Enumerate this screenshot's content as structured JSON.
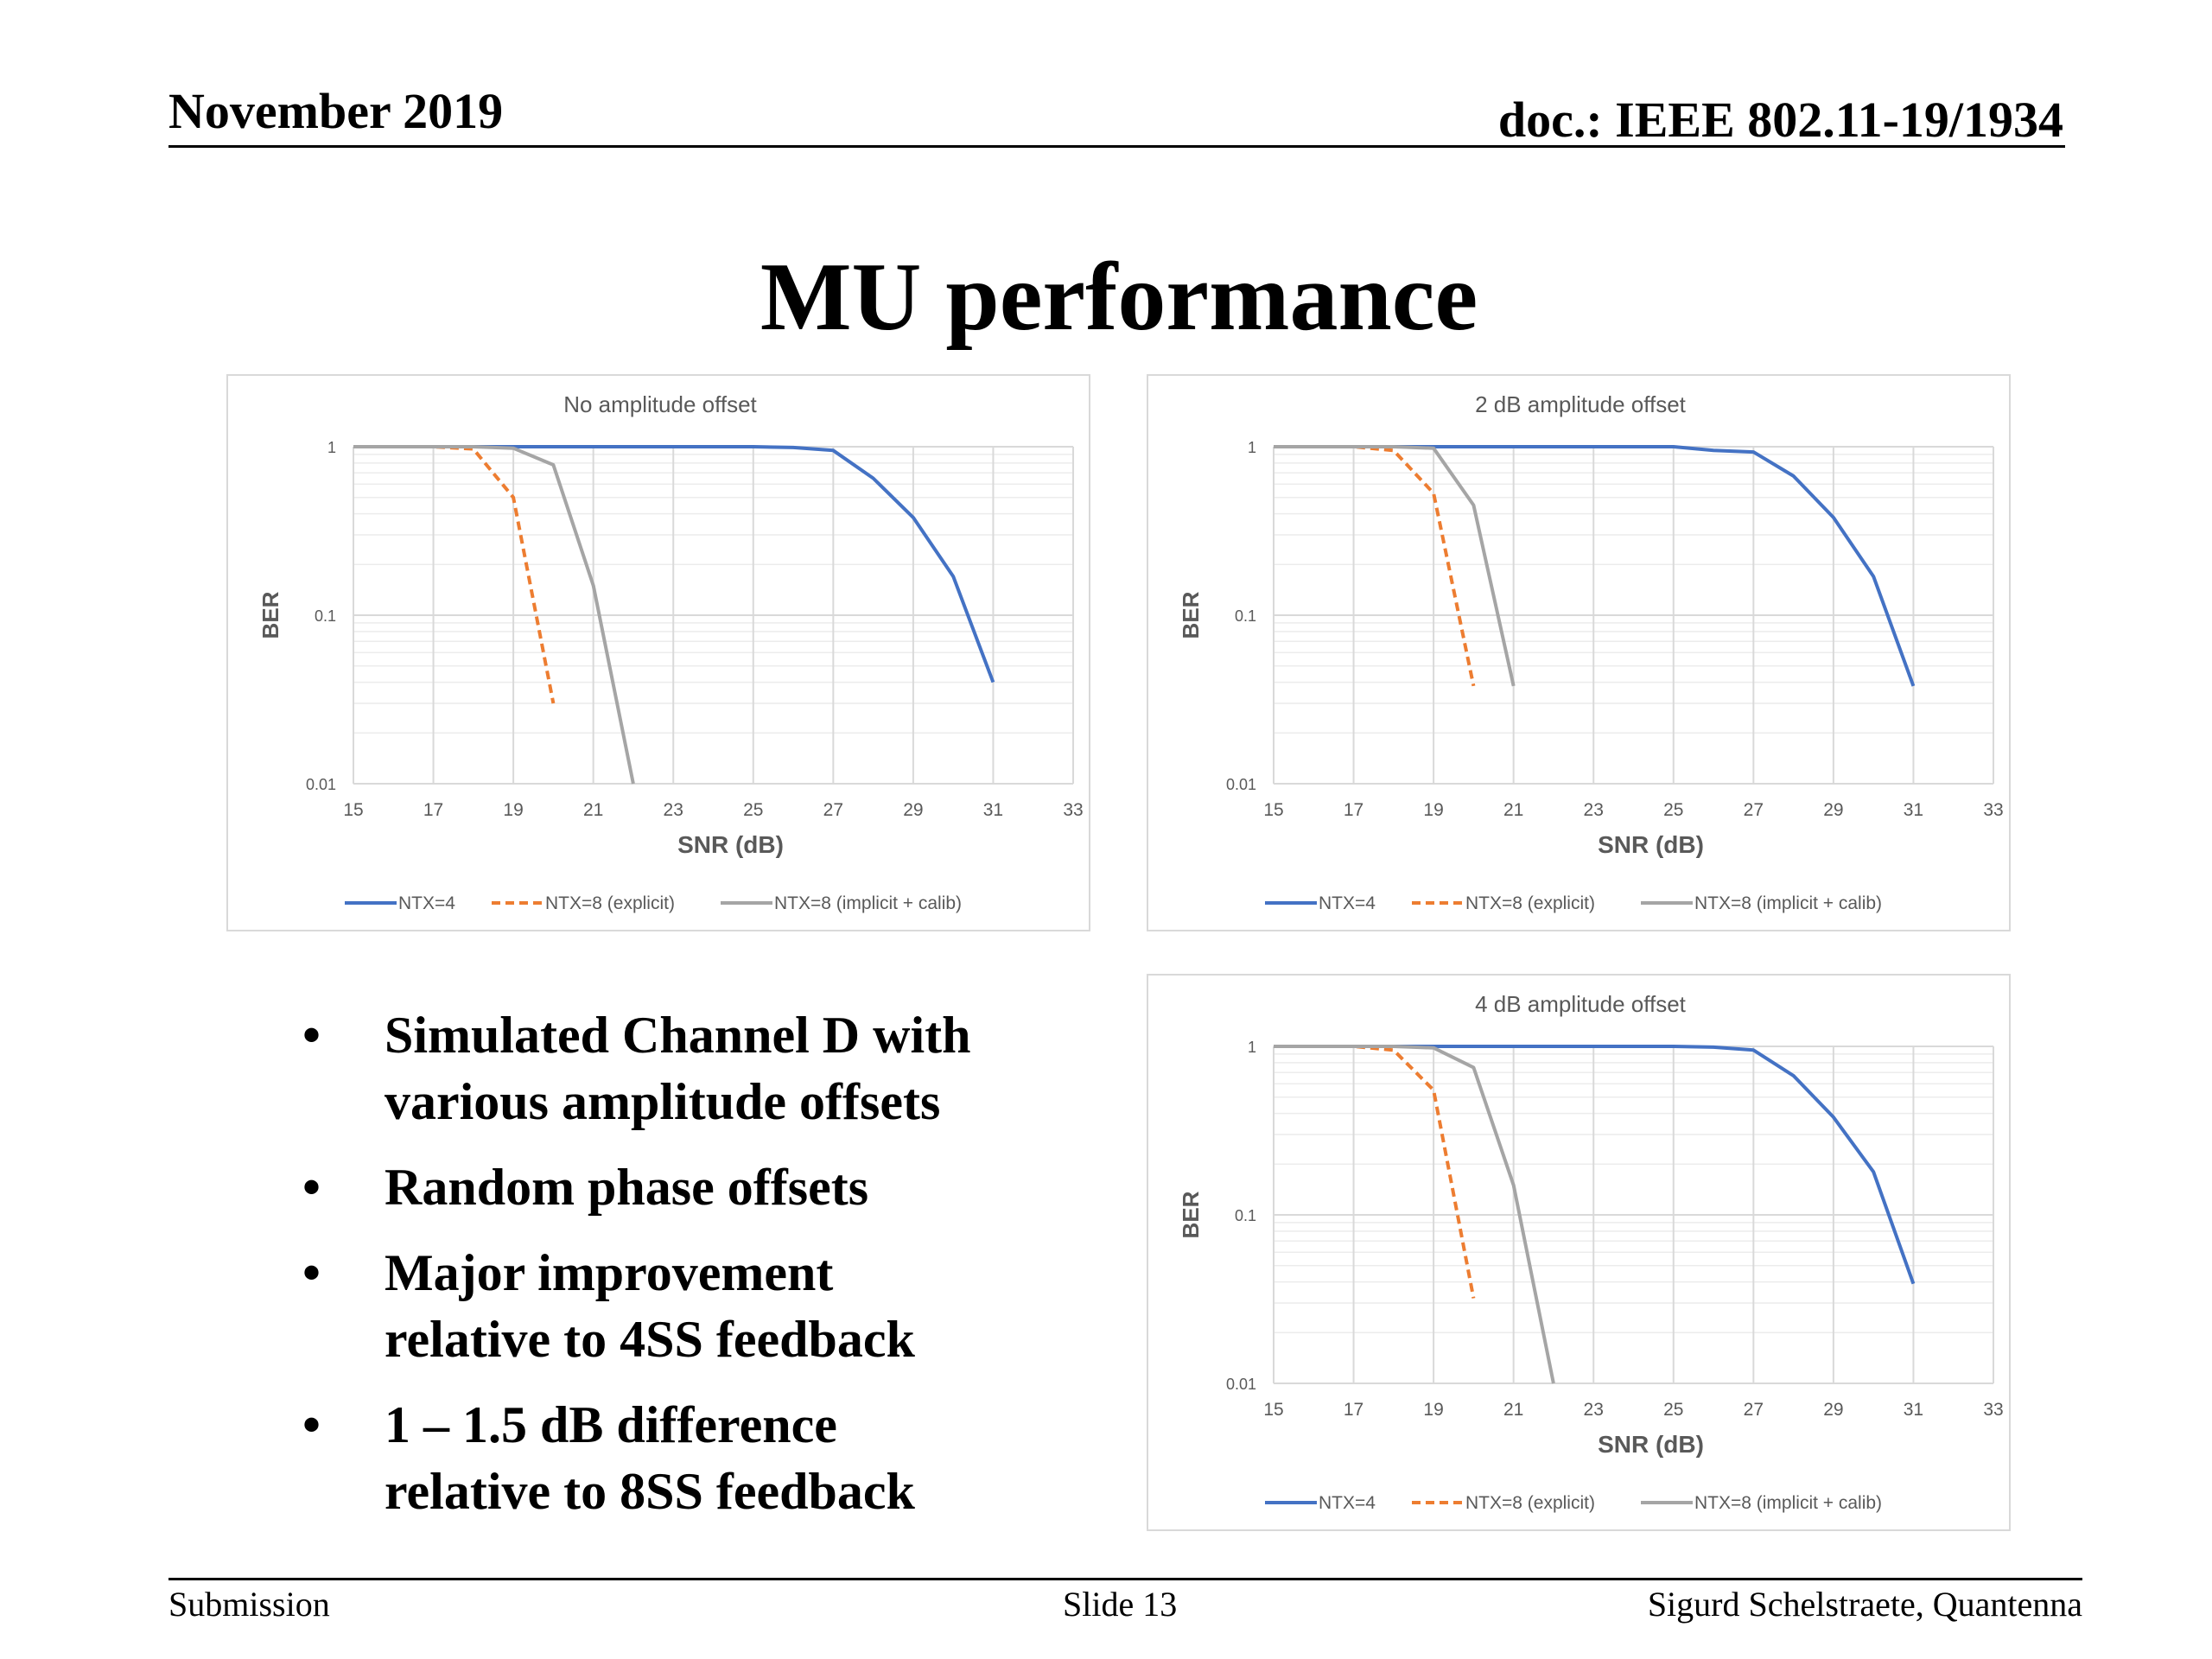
{
  "header": {
    "date": "November 2019",
    "doc": "doc.: IEEE 802.11-19/1934"
  },
  "title": "MU performance",
  "bullets": [
    {
      "line1": "Simulated Channel D with",
      "line2": "various amplitude offsets"
    },
    {
      "line1": "Random phase offsets",
      "line2": ""
    },
    {
      "line1": "Major improvement",
      "line2": "relative to 4SS feedback"
    },
    {
      "line1": "1 – 1.5 dB difference",
      "line2": "relative to 8SS feedback"
    }
  ],
  "footer": {
    "left": "Submission",
    "center": "Slide 13",
    "right": "Sigurd Schelstraete, Quantenna"
  },
  "colors": {
    "ntx4": "#4472c4",
    "ntx8_explicit": "#ed7d31",
    "ntx8_implicit": "#a5a5a5"
  },
  "chart_data": [
    {
      "type": "line",
      "title": "No amplitude offset",
      "xlabel": "SNR (dB)",
      "ylabel": "BER",
      "xlim": [
        15,
        33
      ],
      "ylim": [
        0.01,
        1
      ],
      "yscale": "log",
      "xticks": [
        "15",
        "17",
        "19",
        "21",
        "23",
        "25",
        "27",
        "29",
        "31",
        "33"
      ],
      "yticks": [
        "0.01",
        "0.1",
        "1"
      ],
      "legend": "bottom",
      "series": [
        {
          "name": "NTX=4",
          "style": "solid",
          "color": "#4472c4",
          "x": [
            15,
            16,
            17,
            18,
            19,
            20,
            21,
            22,
            23,
            24,
            25,
            26,
            27,
            28,
            29,
            30,
            31
          ],
          "y": [
            1,
            1,
            1,
            1,
            1,
            1,
            1,
            1,
            1,
            1,
            1,
            0.99,
            0.95,
            0.65,
            0.38,
            0.17,
            0.04
          ]
        },
        {
          "name": "NTX=8 (explicit)",
          "style": "dashed",
          "color": "#ed7d31",
          "x": [
            15,
            16,
            17,
            18,
            19,
            20
          ],
          "y": [
            1,
            1,
            1,
            0.97,
            0.5,
            0.03
          ]
        },
        {
          "name": "NTX=8 (implicit + calib)",
          "style": "solid",
          "color": "#a5a5a5",
          "x": [
            15,
            16,
            17,
            18,
            19,
            20,
            21,
            22
          ],
          "y": [
            1,
            1,
            1,
            1,
            0.98,
            0.78,
            0.15,
            0.01
          ]
        }
      ]
    },
    {
      "type": "line",
      "title": "2 dB amplitude offset",
      "xlabel": "SNR (dB)",
      "ylabel": "BER",
      "xlim": [
        15,
        33
      ],
      "ylim": [
        0.01,
        1
      ],
      "yscale": "log",
      "xticks": [
        "15",
        "17",
        "19",
        "21",
        "23",
        "25",
        "27",
        "29",
        "31",
        "33"
      ],
      "yticks": [
        "0.01",
        "0.1",
        "1"
      ],
      "legend": "bottom",
      "series": [
        {
          "name": "NTX=4",
          "style": "solid",
          "color": "#4472c4",
          "x": [
            15,
            16,
            17,
            18,
            19,
            20,
            21,
            22,
            23,
            24,
            25,
            26,
            27,
            28,
            29,
            30,
            31
          ],
          "y": [
            1,
            1,
            1,
            1,
            1,
            1,
            1,
            1,
            1,
            1,
            1,
            0.95,
            0.93,
            0.67,
            0.38,
            0.17,
            0.038
          ]
        },
        {
          "name": "NTX=8 (explicit)",
          "style": "dashed",
          "color": "#ed7d31",
          "x": [
            15,
            16,
            17,
            18,
            19,
            20
          ],
          "y": [
            1,
            1,
            1,
            0.95,
            0.53,
            0.038
          ]
        },
        {
          "name": "NTX=8 (implicit + calib)",
          "style": "solid",
          "color": "#a5a5a5",
          "x": [
            15,
            16,
            17,
            18,
            19,
            20,
            21
          ],
          "y": [
            1,
            1,
            1,
            1,
            0.98,
            0.45,
            0.038
          ]
        }
      ]
    },
    {
      "type": "line",
      "title": "4 dB amplitude offset",
      "xlabel": "SNR (dB)",
      "ylabel": "BER",
      "xlim": [
        15,
        33
      ],
      "ylim": [
        0.01,
        1
      ],
      "yscale": "log",
      "xticks": [
        "15",
        "17",
        "19",
        "21",
        "23",
        "25",
        "27",
        "29",
        "31",
        "33"
      ],
      "yticks": [
        "0.01",
        "0.1",
        "1"
      ],
      "legend": "bottom",
      "series": [
        {
          "name": "NTX=4",
          "style": "solid",
          "color": "#4472c4",
          "x": [
            15,
            16,
            17,
            18,
            19,
            20,
            21,
            22,
            23,
            24,
            25,
            26,
            27,
            28,
            29,
            30,
            31
          ],
          "y": [
            1,
            1,
            1,
            1,
            1,
            1,
            1,
            1,
            1,
            1,
            1,
            0.99,
            0.95,
            0.67,
            0.38,
            0.18,
            0.039
          ]
        },
        {
          "name": "NTX=8 (explicit)",
          "style": "dashed",
          "color": "#ed7d31",
          "x": [
            15,
            16,
            17,
            18,
            19,
            20
          ],
          "y": [
            1,
            1,
            1,
            0.95,
            0.55,
            0.032
          ]
        },
        {
          "name": "NTX=8 (implicit + calib)",
          "style": "solid",
          "color": "#a5a5a5",
          "x": [
            15,
            16,
            17,
            18,
            19,
            20,
            21,
            22
          ],
          "y": [
            1,
            1,
            1,
            1,
            0.98,
            0.75,
            0.15,
            0.01
          ]
        }
      ]
    }
  ]
}
